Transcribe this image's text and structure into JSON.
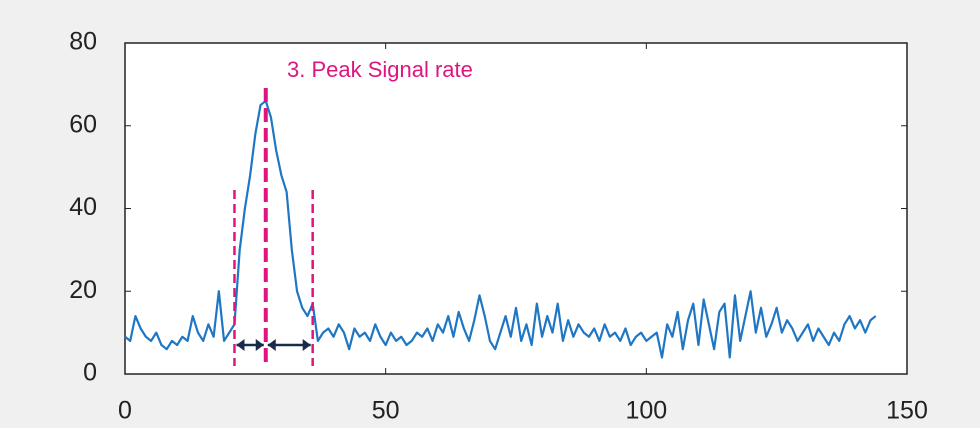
{
  "chart_data": {
    "type": "line",
    "annotation": "3.  Peak Signal rate",
    "x": [
      0,
      1,
      2,
      3,
      4,
      5,
      6,
      7,
      8,
      9,
      10,
      11,
      12,
      13,
      14,
      15,
      16,
      17,
      18,
      19,
      20,
      21,
      22,
      23,
      24,
      25,
      26,
      27,
      28,
      29,
      30,
      31,
      32,
      33,
      34,
      35,
      36,
      37,
      38,
      39,
      40,
      41,
      42,
      43,
      44,
      45,
      46,
      47,
      48,
      49,
      50,
      51,
      52,
      53,
      54,
      55,
      56,
      57,
      58,
      59,
      60,
      61,
      62,
      63,
      64,
      65,
      66,
      67,
      68,
      69,
      70,
      71,
      72,
      73,
      74,
      75,
      76,
      77,
      78,
      79,
      80,
      81,
      82,
      83,
      84,
      85,
      86,
      87,
      88,
      89,
      90,
      91,
      92,
      93,
      94,
      95,
      96,
      97,
      98,
      99,
      100,
      101,
      102,
      103,
      104,
      105,
      106,
      107,
      108,
      109,
      110,
      111,
      112,
      113,
      114,
      115,
      116,
      117,
      118,
      119,
      120,
      121,
      122,
      123,
      124,
      125,
      126,
      127,
      128,
      129,
      130,
      131,
      132,
      133,
      134,
      135,
      136,
      137,
      138,
      139,
      140,
      141,
      142,
      143,
      144
    ],
    "series": [
      {
        "color": "#1f77c4",
        "values": [
          9,
          8,
          14,
          11,
          9,
          8,
          10,
          7,
          6,
          8,
          7,
          9,
          8,
          14,
          10,
          8,
          12,
          9,
          20,
          8,
          10,
          12,
          30,
          40,
          48,
          58,
          65,
          66,
          62,
          54,
          48,
          44,
          30,
          20,
          16,
          14,
          17,
          8,
          10,
          11,
          9,
          12,
          10,
          6,
          11,
          9,
          10,
          8,
          12,
          9,
          7,
          10,
          8,
          9,
          7,
          8,
          10,
          9,
          11,
          8,
          12,
          10,
          14,
          9,
          15,
          11,
          8,
          13,
          19,
          14,
          8,
          6,
          10,
          14,
          9,
          16,
          8,
          12,
          7,
          17,
          9,
          14,
          10,
          17,
          8,
          13,
          9,
          12,
          10,
          9,
          11,
          8,
          12,
          9,
          10,
          8,
          11,
          7,
          9,
          10,
          8,
          9,
          10,
          4,
          12,
          9,
          15,
          6,
          13,
          17,
          7,
          18,
          12,
          6,
          15,
          17,
          4,
          19,
          8,
          14,
          20,
          10,
          16,
          9,
          12,
          16,
          10,
          13,
          11,
          8,
          10,
          12,
          8,
          11,
          9,
          7,
          10,
          8,
          12,
          14,
          11,
          13,
          10,
          13,
          14
        ]
      }
    ],
    "vlines": [
      21,
      27,
      36
    ],
    "xlim": [
      0,
      150
    ],
    "xticks": [
      0,
      50,
      100,
      150
    ],
    "ylim": [
      0,
      80
    ],
    "yticks": [
      0,
      20,
      40,
      60,
      80
    ]
  }
}
